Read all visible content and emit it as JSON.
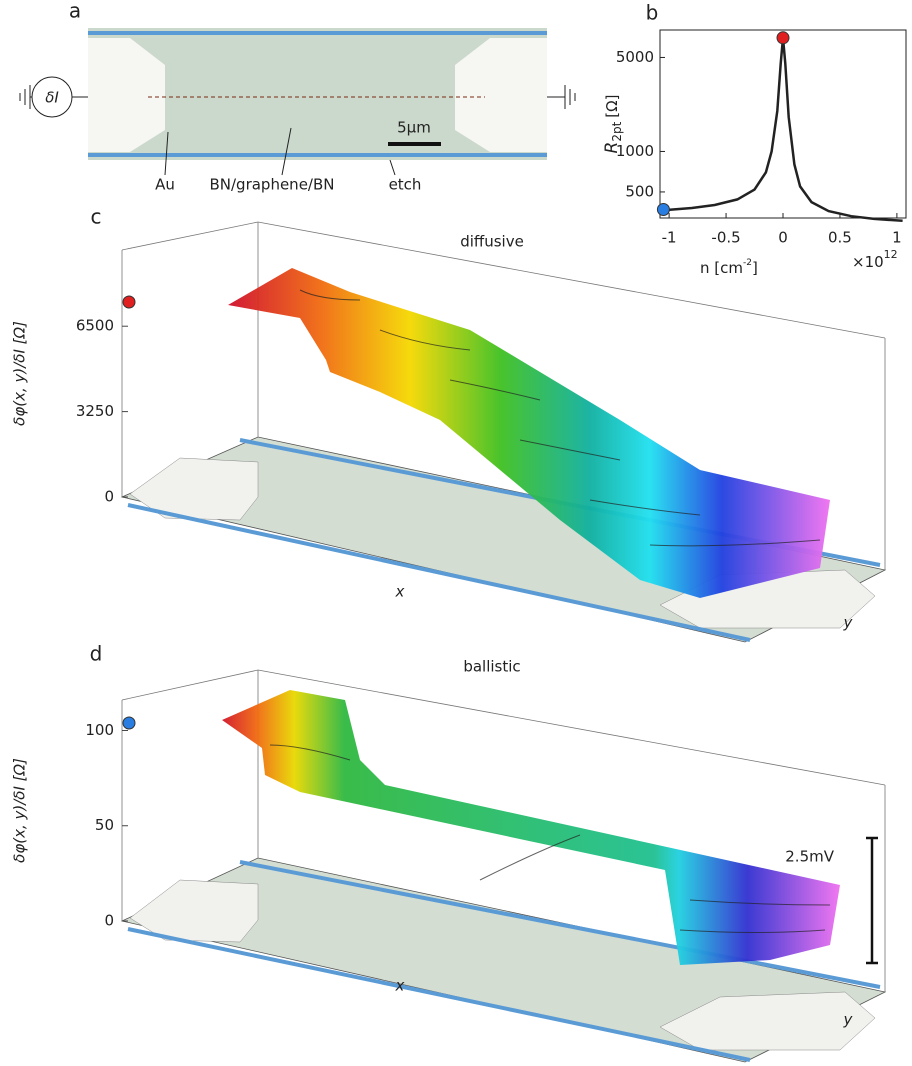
{
  "panel_labels": [
    "a",
    "b",
    "c",
    "d"
  ],
  "device": {
    "source": "δI",
    "labels": [
      "Au",
      "BN/graphene/BN",
      "etch"
    ],
    "scale_bar": "5μm"
  },
  "chart_data": [
    {
      "type": "line",
      "ylabel": {
        "symbol": "R",
        "subscript": "2pt",
        "unit": "[Ω]"
      },
      "xlabel": {
        "text": "n [cm",
        "superscript": "-2",
        "close": "]"
      },
      "x_exponent": {
        "prefix": "×10",
        "power": "12"
      },
      "x": [
        -1.08,
        -1.05,
        -0.8,
        -0.6,
        -0.4,
        -0.25,
        -0.15,
        -0.1,
        -0.05,
        -0.02,
        0,
        0.02,
        0.05,
        0.1,
        0.15,
        0.25,
        0.4,
        0.6,
        0.8,
        1.05
      ],
      "values": [
        360,
        365,
        380,
        400,
        440,
        520,
        700,
        1000,
        2000,
        4500,
        7000,
        4500,
        1800,
        800,
        550,
        420,
        360,
        330,
        315,
        305
      ],
      "color": "#222222",
      "markers": [
        {
          "x": 0,
          "y": 7000,
          "color": "#e02020"
        },
        {
          "x": -1.05,
          "y": 370,
          "color": "#2a7de1"
        }
      ],
      "xlim": [
        -1.08,
        1.08
      ],
      "ylim": [
        320,
        8000
      ],
      "log_y": true,
      "xticks": [
        -1,
        -0.5,
        0,
        0.5,
        1
      ],
      "yticks": [
        500,
        1000,
        5000
      ]
    },
    {
      "type": "surface",
      "title": "diffusive",
      "zlabel": "δφ(x, y)/δI [Ω]",
      "xlabel": "x",
      "ylabel": "y",
      "zlim": [
        0,
        9400
      ],
      "zticks": [
        0,
        3250,
        6500
      ],
      "marker_color": "#e02020"
    },
    {
      "type": "surface",
      "title": "ballistic",
      "zlabel": "δφ(x, y)/δI [Ω]",
      "xlabel": "x",
      "ylabel": "y",
      "zlim": [
        0,
        116
      ],
      "zticks": [
        0,
        50,
        100
      ],
      "marker_color": "#2a7de1",
      "annotation": "2.5mV"
    }
  ]
}
